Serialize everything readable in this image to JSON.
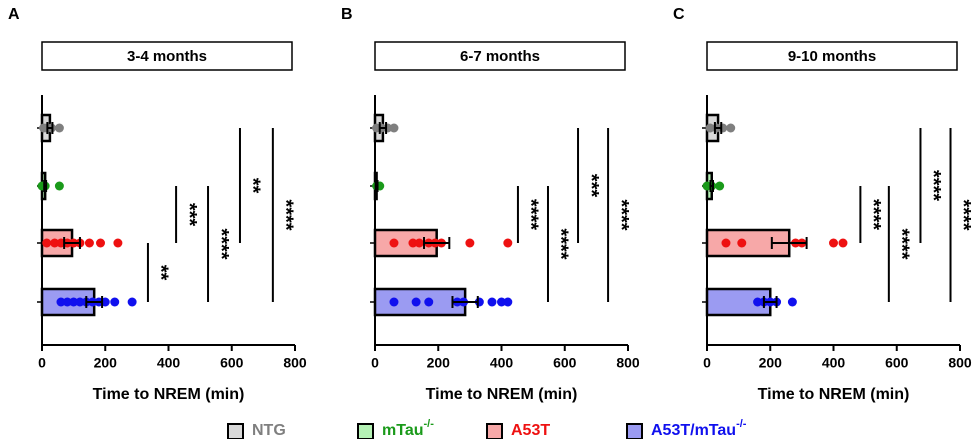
{
  "legend": [
    {
      "name": "NTG",
      "fill": "#d9d9d9",
      "color": "#7f7f7f"
    },
    {
      "name": "mTau",
      "sup": "-/-",
      "fill": "#b5f2b5",
      "color": "#1a9a1a"
    },
    {
      "name": "A53T",
      "fill": "#f7a8a8",
      "color": "#ee1111"
    },
    {
      "name": "A53T/mTau",
      "sup": "-/-",
      "fill": "#9b9bf2",
      "color": "#1010ee"
    }
  ],
  "chart_data": [
    {
      "type": "bar",
      "panel": "A",
      "title": "3-4 months",
      "xlabel": "Time to NREM (min)",
      "xlim": [
        0,
        800
      ],
      "xticks": [
        0,
        200,
        400,
        600,
        800
      ],
      "values": [
        25,
        10,
        95,
        165
      ],
      "errors": [
        8,
        3,
        25,
        25
      ],
      "points": [
        [
          5,
          15,
          30,
          55
        ],
        [
          0,
          10,
          55
        ],
        [
          15,
          40,
          60,
          80,
          100,
          120,
          150,
          185,
          240
        ],
        [
          60,
          80,
          100,
          120,
          140,
          160,
          180,
          200,
          230,
          285
        ]
      ],
      "annotations": [
        {
          "label": "**",
          "x": 335,
          "rows": [
            2,
            3
          ]
        },
        {
          "label": "***",
          "x": 424,
          "rows": [
            1,
            2
          ]
        },
        {
          "label": "****",
          "x": 525,
          "rows": [
            1,
            3
          ]
        },
        {
          "label": "**",
          "x": 626,
          "rows": [
            0,
            2
          ]
        },
        {
          "label": "****",
          "x": 730,
          "rows": [
            0,
            3
          ]
        }
      ]
    },
    {
      "type": "bar",
      "panel": "B",
      "title": "6-7 months",
      "xlabel": "Time to NREM (min)",
      "xlim": [
        0,
        800
      ],
      "xticks": [
        0,
        200,
        400,
        600,
        800
      ],
      "values": [
        25,
        5,
        195,
        285
      ],
      "errors": [
        10,
        3,
        40,
        40
      ],
      "points": [
        [
          5,
          20,
          40,
          60
        ],
        [
          5,
          15
        ],
        [
          60,
          120,
          140,
          170,
          190,
          210,
          300,
          420
        ],
        [
          60,
          130,
          170,
          260,
          280,
          330,
          370,
          400,
          420
        ]
      ],
      "annotations": [
        {
          "label": "****",
          "x": 452,
          "rows": [
            1,
            2
          ]
        },
        {
          "label": "****",
          "x": 547,
          "rows": [
            1,
            3
          ]
        },
        {
          "label": "***",
          "x": 642,
          "rows": [
            0,
            2
          ]
        },
        {
          "label": "****",
          "x": 737,
          "rows": [
            0,
            3
          ]
        }
      ]
    },
    {
      "type": "bar",
      "panel": "C",
      "title": "9-10 months",
      "xlabel": "Time to NREM (min)",
      "xlim": [
        0,
        800
      ],
      "xticks": [
        0,
        200,
        400,
        600,
        800
      ],
      "values": [
        35,
        15,
        260,
        200
      ],
      "errors": [
        10,
        4,
        55,
        20
      ],
      "points": [
        [
          10,
          30,
          50,
          75
        ],
        [
          0,
          15,
          40
        ],
        [
          60,
          110,
          280,
          300,
          400,
          430
        ],
        [
          160,
          180,
          200,
          220,
          270
        ]
      ],
      "annotations": [
        {
          "label": "****",
          "x": 485,
          "rows": [
            1,
            2
          ]
        },
        {
          "label": "****",
          "x": 575,
          "rows": [
            1,
            3
          ]
        },
        {
          "label": "****",
          "x": 675,
          "rows": [
            0,
            2
          ]
        },
        {
          "label": "****",
          "x": 770,
          "rows": [
            0,
            3
          ]
        }
      ]
    }
  ]
}
